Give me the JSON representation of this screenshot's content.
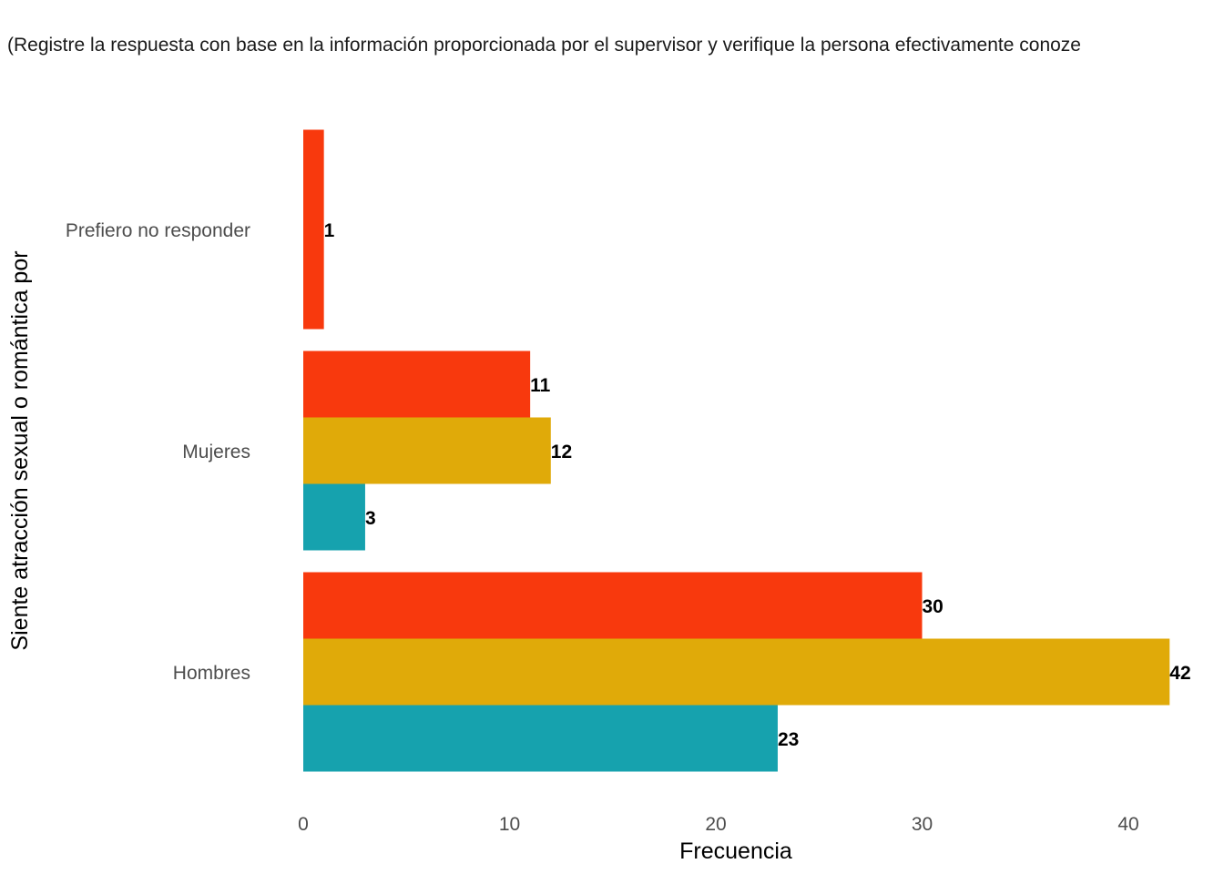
{
  "chart_data": {
    "type": "bar",
    "orientation": "horizontal",
    "subtitle": "(Registre la respuesta con base en la información proporcionada por el supervisor y verifique la persona efectivamente conoze",
    "xlabel": "Frecuencia",
    "ylabel": "Siente atracción sexual o romántica por",
    "xlim": [
      0,
      42
    ],
    "x_ticks": [
      0,
      10,
      20,
      30,
      40
    ],
    "x_tick_labels": [
      "0",
      "10",
      "20",
      "30",
      "40"
    ],
    "grid": false,
    "legend": "none",
    "categories": [
      "Prefiero no responder",
      "Mujeres",
      "Hombres"
    ],
    "series": [
      {
        "color": "#F8390D",
        "values": [
          1,
          11,
          30
        ]
      },
      {
        "color": "#E0AA09",
        "values": [
          null,
          12,
          42
        ]
      },
      {
        "color": "#16A2AE",
        "values": [
          null,
          3,
          23
        ]
      }
    ]
  }
}
